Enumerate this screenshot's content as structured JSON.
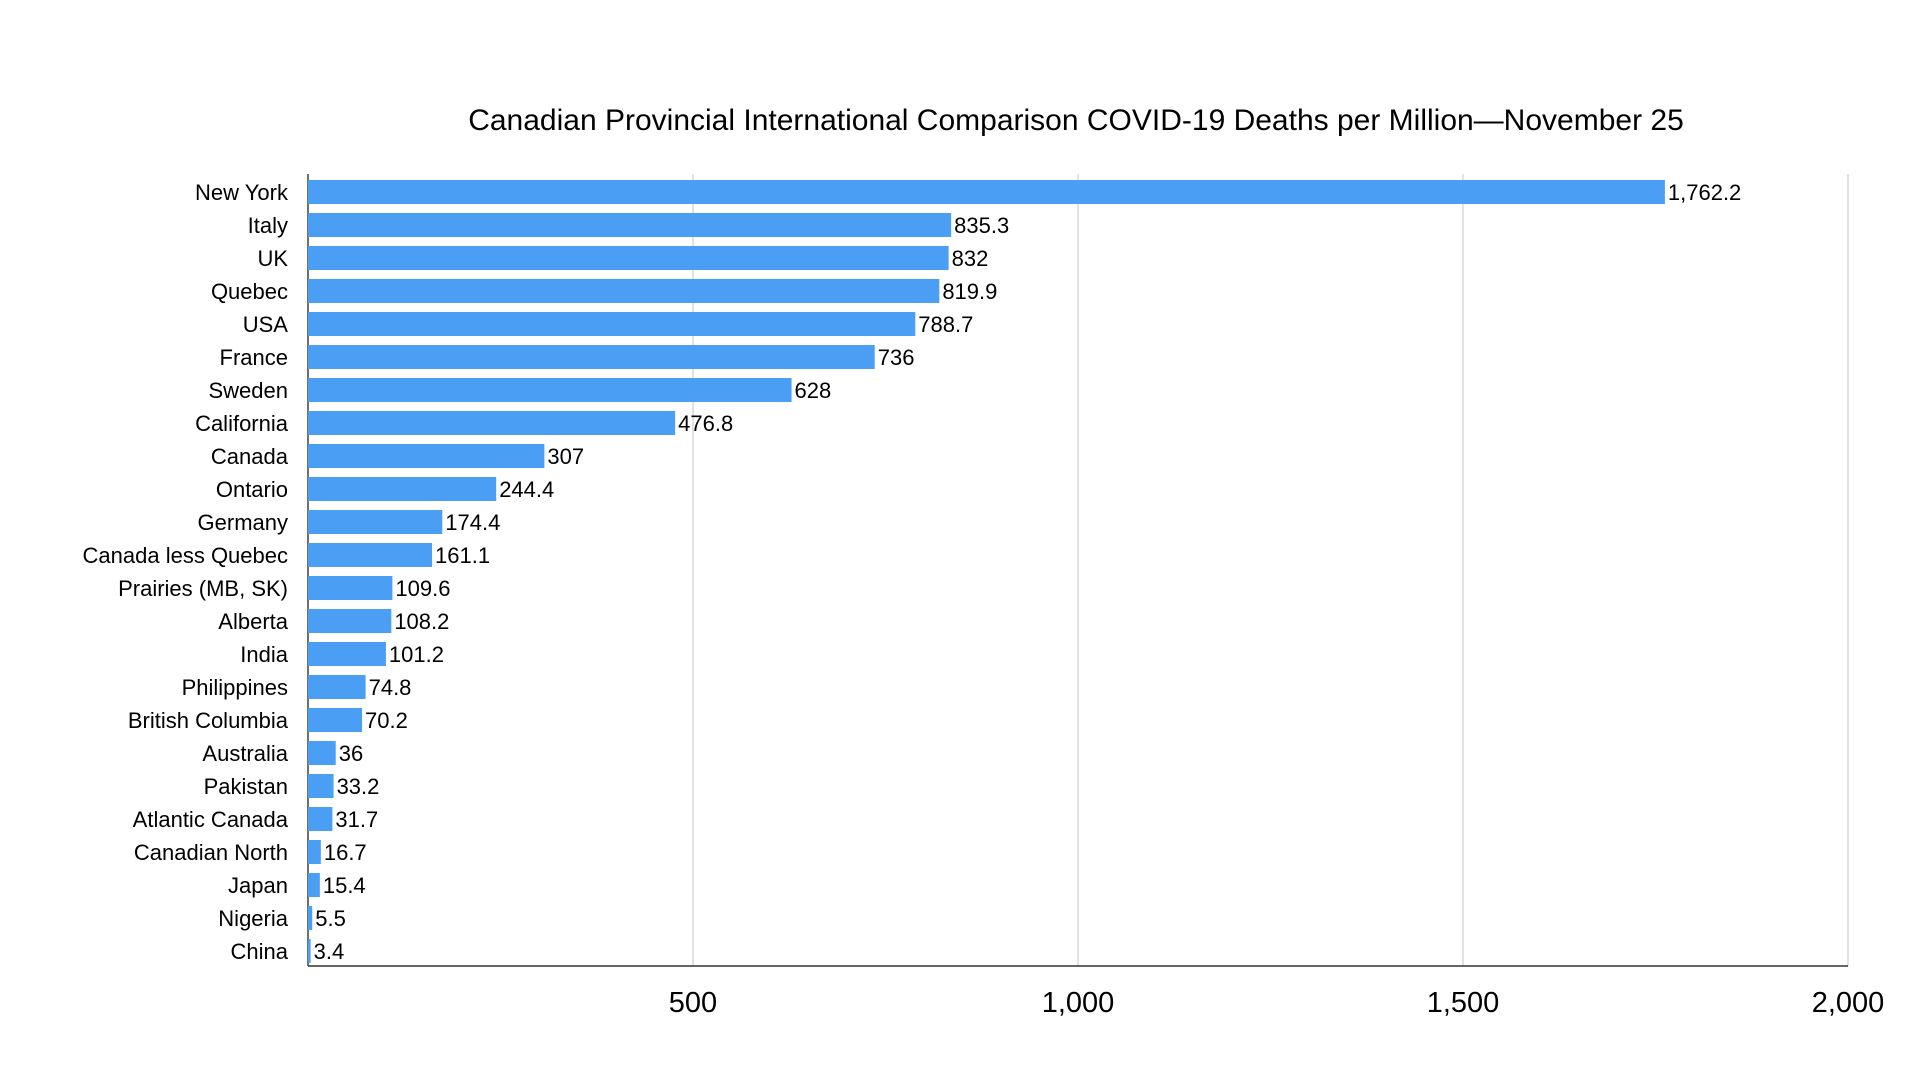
{
  "chart_data": {
    "type": "bar",
    "orientation": "horizontal",
    "title": "Canadian Provincial International Comparison COVID-19 Deaths per Million—November 25",
    "xlabel": "",
    "ylabel": "",
    "xlim": [
      0,
      2000
    ],
    "x_ticks": [
      500,
      1000,
      1500,
      2000
    ],
    "x_tick_labels": [
      "500",
      "1,000",
      "1,500",
      "2,000"
    ],
    "grid": "vertical",
    "legend": "none",
    "bar_color": "#4a9ff5",
    "categories": [
      "New York",
      "Italy",
      "UK",
      "Quebec",
      "USA",
      "France",
      "Sweden",
      "California",
      "Canada",
      "Ontario",
      "Germany",
      "Canada less Quebec",
      "Prairies (MB, SK)",
      "Alberta",
      "India",
      "Philippines",
      "British Columbia",
      "Australia",
      "Pakistan",
      "Atlantic Canada",
      "Canadian North",
      "Japan",
      "Nigeria",
      "China"
    ],
    "values": [
      1762.2,
      835.3,
      832,
      819.9,
      788.7,
      736,
      628,
      476.8,
      307,
      244.4,
      174.4,
      161.1,
      109.6,
      108.2,
      101.2,
      74.8,
      70.2,
      36,
      33.2,
      31.7,
      16.7,
      15.4,
      5.5,
      3.4
    ],
    "value_labels": [
      "1,762.2",
      "835.3",
      "832",
      "819.9",
      "788.7",
      "736",
      "628",
      "476.8",
      "307",
      "244.4",
      "174.4",
      "161.1",
      "109.6",
      "108.2",
      "101.2",
      "74.8",
      "70.2",
      "36",
      "33.2",
      "31.7",
      "16.7",
      "15.4",
      "5.5",
      "3.4"
    ]
  }
}
